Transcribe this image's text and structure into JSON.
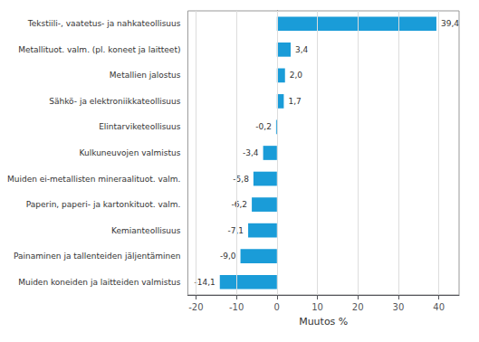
{
  "chart_data": {
    "type": "bar",
    "orientation": "horizontal",
    "categories": [
      "Muiden koneiden ja laitteiden valmistus",
      "Painaminen ja tallenteiden jäljentäminen",
      "Kemianteollisuus",
      "Paperin, paperi- ja kartonkituot. valm.",
      "Muiden ei-metallisten mineraalituot. valm.",
      "Kulkuneuvojen valmistus",
      "Elintarviketeollisuus",
      "Sähkö- ja elektroniikkateollisuus",
      "Metallien jalostus",
      "Metallituot. valm. (pl. koneet ja laitteet)",
      "Tekstiili-, vaatetus- ja nahkateollisuus"
    ],
    "values": [
      -14.1,
      -9.0,
      -7.1,
      -6.2,
      -5.8,
      -3.4,
      -0.2,
      1.7,
      2.0,
      3.4,
      39.4
    ],
    "value_labels": [
      "-14,1",
      "-9,0",
      "-7,1",
      "-6,2",
      "-5,8",
      "-3,4",
      "-0,2",
      "1,7",
      "2,0",
      "3,4",
      "39,4"
    ],
    "color": "#1a9cd8",
    "xlabel": "Muutos %",
    "xlim": [
      -22,
      45
    ],
    "xticks": [
      -20,
      -10,
      0,
      10,
      20,
      30,
      40
    ],
    "grid": true,
    "data_labels": true
  }
}
